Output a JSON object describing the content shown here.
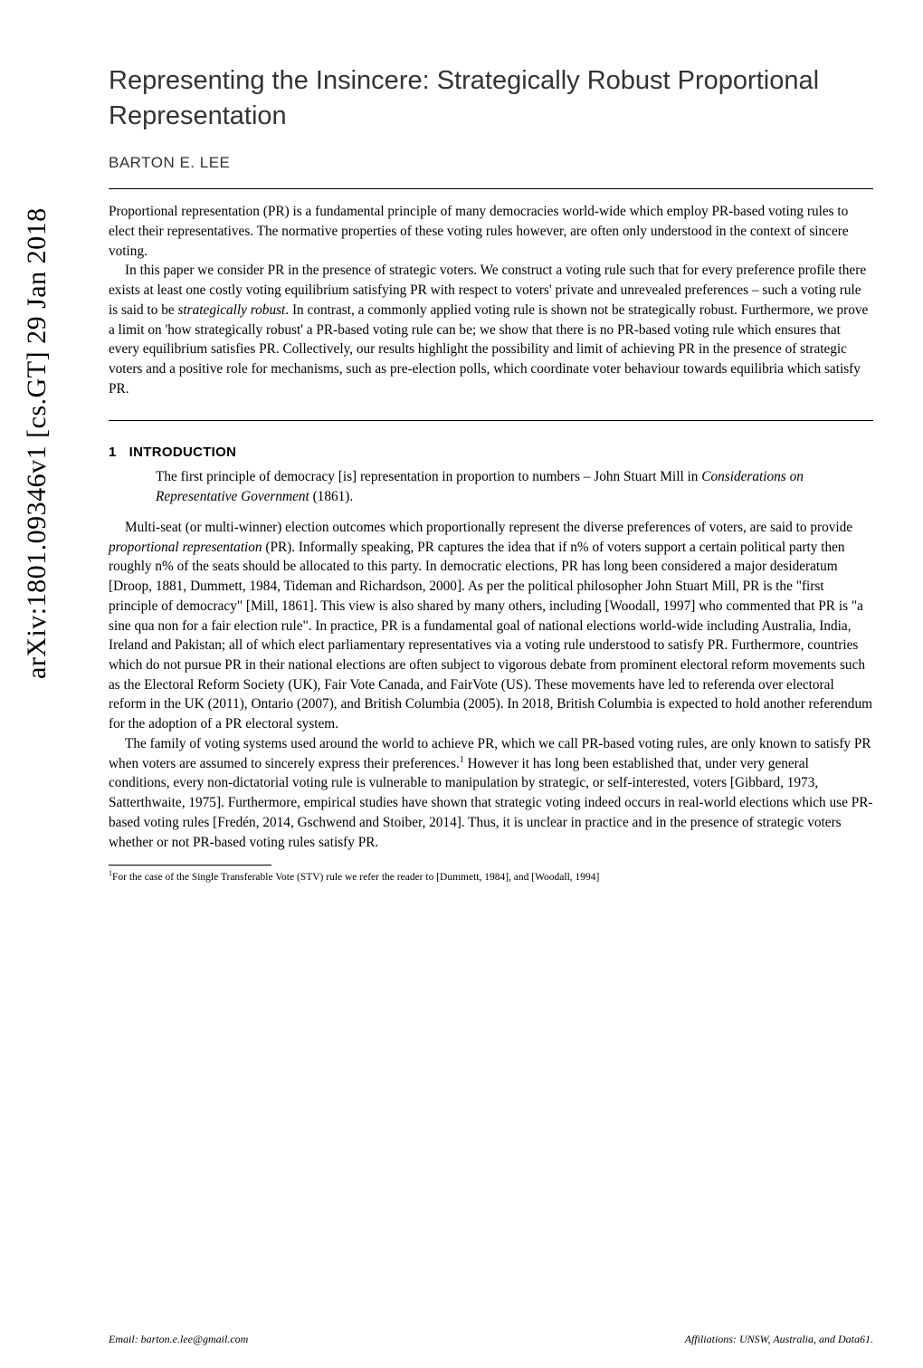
{
  "arxiv_stamp": "arXiv:1801.09346v1  [cs.GT]  29 Jan 2018",
  "title": "Representing the Insincere: Strategically Robust Proportional Representation",
  "author": "BARTON E. LEE",
  "abstract": {
    "p1": "Proportional representation (PR) is a fundamental principle of many democracies world-wide which employ PR-based voting rules to elect their representatives. The normative properties of these voting rules however, are often only understood in the context of sincere voting.",
    "p2_a": "In this paper we consider PR in the presence of strategic voters. We construct a voting rule such that for every preference profile there exists at least one costly voting equilibrium satisfying PR with respect to voters' private and unrevealed preferences – such a voting rule is said to be ",
    "p2_em": "strategically robust",
    "p2_b": ". In contrast, a commonly applied voting rule is shown not be strategically robust. Furthermore, we prove a limit on 'how strategically robust' a PR-based voting rule can be; we show that there is no PR-based voting rule which ensures that every equilibrium satisfies PR. Collectively, our results highlight the possibility and limit of achieving PR in the presence of strategic voters and a positive role for mechanisms, such as pre-election polls, which coordinate voter behaviour towards equilibria which satisfy PR."
  },
  "section": {
    "num": "1",
    "title": "INTRODUCTION"
  },
  "epigraph_a": "The first principle of democracy [is] representation in proportion to numbers – John Stuart Mill in ",
  "epigraph_em": "Considerations on Representative Government",
  "epigraph_b": " (1861).",
  "body": {
    "p1_a": "Multi-seat (or multi-winner) election outcomes which proportionally represent the diverse preferences of voters, are said to provide ",
    "p1_em": "proportional representation",
    "p1_b": " (PR). Informally speaking, PR captures the idea that if n% of voters support a certain political party then roughly n% of the seats should be allocated to this party. In democratic elections, PR has long been considered a major desideratum [Droop, 1881, Dummett, 1984, Tideman and Richardson, 2000]. As per the political philosopher John Stuart Mill, PR is the \"first principle of democracy\" [Mill, 1861]. This view is also shared by many others, including [Woodall, 1997] who commented that PR is \"a sine qua non for a fair election rule\". In practice, PR is a fundamental goal of national elections world-wide including Australia, India, Ireland and Pakistan; all of which elect parliamentary representatives via a voting rule understood to satisfy PR. Furthermore, countries which do not pursue PR in their national elections are often subject to vigorous debate from prominent electoral reform movements such as the Electoral Reform Society (UK), Fair Vote Canada, and FairVote (US). These movements have led to referenda over electoral reform in the UK (2011), Ontario (2007), and British Columbia (2005). In 2018, British Columbia is expected to hold another referendum for the adoption of a PR electoral system.",
    "p2": "The family of voting systems used around the world to achieve PR, which we call PR-based voting rules, are only known to satisfy PR when voters are assumed to sincerely express their preferences.",
    "p2_after_fn": " However it has long been established that, under very general conditions, every non-dictatorial voting rule is vulnerable to manipulation by strategic, or self-interested, voters [Gibbard, 1973, Satterthwaite, 1975]. Furthermore, empirical studies have shown that strategic voting indeed occurs in real-world elections which use PR-based voting rules [Fredén, 2014, Gschwend and Stoiber, 2014]. Thus, it is unclear in practice and in the presence of strategic voters whether or not PR-based voting rules satisfy PR."
  },
  "footnote": {
    "marker": "1",
    "text": "For the case of the Single Transferable Vote (STV) rule we refer the reader to [Dummett, 1984], and [Woodall, 1994]"
  },
  "footer": {
    "left": "Email: barton.e.lee@gmail.com",
    "right": "Affiliations: UNSW, Australia, and Data61."
  }
}
